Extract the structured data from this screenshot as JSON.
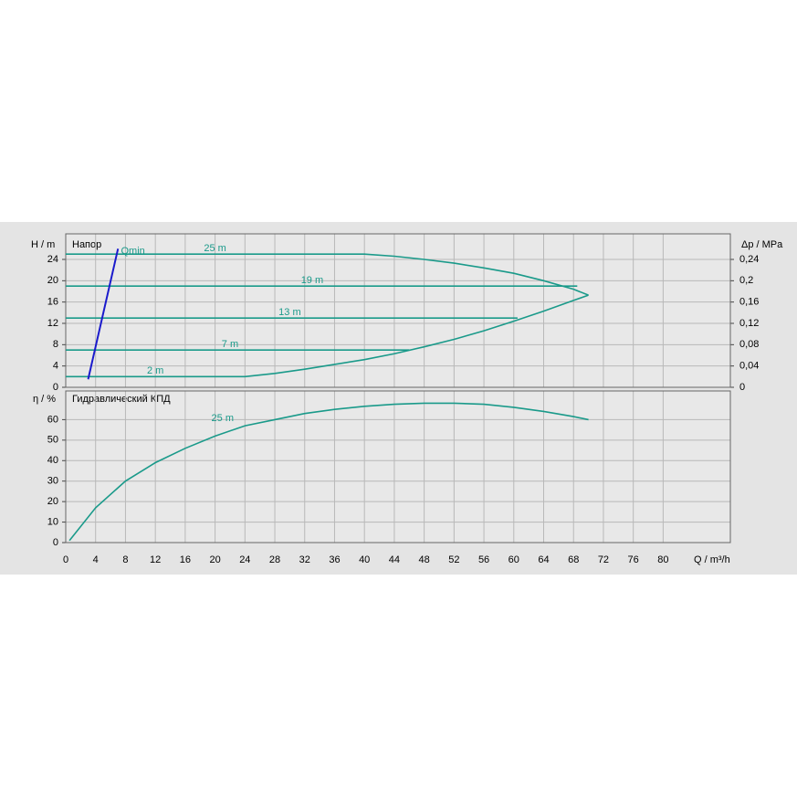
{
  "chart_data": [
    {
      "type": "line",
      "y_label": "H / m",
      "title": "Напор",
      "y2_label": "Δp / MPa",
      "ylim": [
        0,
        28.8
      ],
      "yticks": [
        0,
        4,
        8,
        12,
        16,
        20,
        24
      ],
      "y2lim": [
        0,
        0.288
      ],
      "y2ticks": [
        {
          "value": 0,
          "label": "0"
        },
        {
          "value": 0.04,
          "label": "0,04"
        },
        {
          "value": 0.08,
          "label": "0,08"
        },
        {
          "value": 0.12,
          "label": "0,12"
        },
        {
          "value": 0.16,
          "label": "0,16"
        },
        {
          "value": 0.2,
          "label": "0,2"
        },
        {
          "value": 0.24,
          "label": "0,24"
        }
      ],
      "grid": true,
      "series": [
        {
          "name": "25 m",
          "color": "#1a9a8a",
          "x": [
            0,
            40,
            44,
            48,
            52,
            56,
            60,
            64,
            68,
            70
          ],
          "values": [
            25,
            25,
            24.6,
            24,
            23.3,
            22.4,
            21.4,
            20,
            18.4,
            17.3
          ]
        },
        {
          "name": "19 m",
          "color": "#1a9a8a",
          "x": [
            0,
            68.5
          ],
          "values": [
            19,
            19
          ]
        },
        {
          "name": "13 m",
          "color": "#1a9a8a",
          "x": [
            0,
            60.5
          ],
          "values": [
            13,
            13
          ]
        },
        {
          "name": "7 m",
          "color": "#1a9a8a",
          "x": [
            0,
            46
          ],
          "values": [
            7,
            7
          ]
        },
        {
          "name": "2 m",
          "color": "#1a9a8a",
          "x": [
            0,
            24,
            28,
            32,
            36,
            40,
            44,
            48,
            52,
            56,
            60,
            64,
            68,
            70
          ],
          "values": [
            2,
            2,
            2.6,
            3.4,
            4.3,
            5.2,
            6.3,
            7.6,
            9,
            10.6,
            12.4,
            14.3,
            16.3,
            17.3
          ]
        },
        {
          "name": "Qmin",
          "color": "#1a1acc",
          "x": [
            3,
            7
          ],
          "values": [
            1.5,
            26
          ]
        }
      ]
    },
    {
      "type": "line",
      "y_label": "η / %",
      "title": "Гидравлический КПД",
      "x_label": "Q / m³/h",
      "xlim": [
        0,
        89
      ],
      "xticks": [
        0,
        4,
        8,
        12,
        16,
        20,
        24,
        28,
        32,
        36,
        40,
        44,
        48,
        52,
        56,
        60,
        64,
        68,
        72,
        76,
        80
      ],
      "ylim": [
        0,
        74
      ],
      "yticks": [
        0,
        10,
        20,
        30,
        40,
        50,
        60
      ],
      "grid": true,
      "series": [
        {
          "name": "25 m",
          "color": "#1a9a8a",
          "x": [
            0.5,
            4,
            8,
            12,
            16,
            20,
            24,
            28,
            32,
            36,
            40,
            44,
            48,
            52,
            56,
            60,
            64,
            68,
            70
          ],
          "values": [
            1,
            17,
            30,
            39,
            46,
            52,
            57,
            60,
            63,
            65,
            66.5,
            67.5,
            68,
            68,
            67.5,
            66,
            64,
            61.5,
            60
          ]
        }
      ]
    }
  ]
}
